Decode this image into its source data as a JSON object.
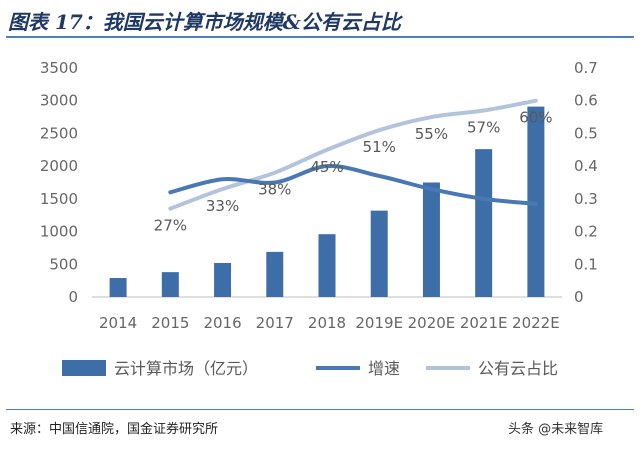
{
  "header": {
    "title": "图表 17：我国云计算市场规模&公有云占比"
  },
  "footer": {
    "source": "来源：中国信通院，国金证券研究所"
  },
  "watermark": {
    "text": "头条 @未来智库"
  },
  "colors": {
    "bars": "#3e6ea8",
    "growth_line": "#4a78b4",
    "public_cloud_line": "#b4c3dc",
    "title": "#1f3864",
    "axis_text": "#666666"
  },
  "chart_data": {
    "type": "bar",
    "categories": [
      "2014",
      "2015",
      "2016",
      "2017",
      "2018",
      "2019E",
      "2020E",
      "2021E",
      "2022E"
    ],
    "y_left": {
      "ticks": [
        "0",
        "500",
        "1000",
        "1500",
        "2000",
        "2500",
        "3000",
        "3500"
      ],
      "ylim": [
        0,
        3500
      ]
    },
    "y_right": {
      "ticks": [
        "0",
        "0.1",
        "0.2",
        "0.3",
        "0.4",
        "0.5",
        "0.6",
        "0.7"
      ],
      "ylim": [
        0,
        0.7
      ]
    },
    "series": [
      {
        "name": "云计算市场（亿元）",
        "kind": "bar",
        "axis": "left",
        "values": [
          290,
          380,
          520,
          690,
          960,
          1320,
          1750,
          2260,
          2910
        ]
      },
      {
        "name": "增速",
        "kind": "line",
        "axis": "right",
        "values": [
          null,
          0.32,
          0.36,
          0.35,
          0.4,
          0.37,
          0.33,
          0.3,
          0.285
        ]
      },
      {
        "name": "公有云占比",
        "kind": "line",
        "axis": "right",
        "values": [
          null,
          0.27,
          0.33,
          0.38,
          0.45,
          0.51,
          0.55,
          0.57,
          0.6
        ],
        "labels": [
          null,
          "27%",
          "33%",
          "38%",
          "45%",
          "51%",
          "55%",
          "57%",
          "60%"
        ]
      }
    ],
    "legend_position": "bottom",
    "grid": false
  }
}
